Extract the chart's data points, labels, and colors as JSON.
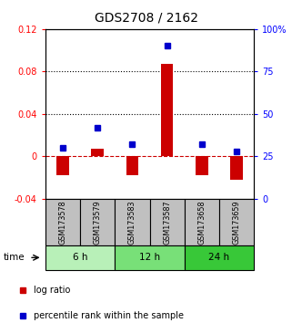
{
  "title": "GDS2708 / 2162",
  "samples": [
    "GSM173578",
    "GSM173579",
    "GSM173583",
    "GSM173587",
    "GSM173658",
    "GSM173659"
  ],
  "log_ratio": [
    -0.018,
    0.007,
    -0.018,
    0.087,
    -0.018,
    -0.022
  ],
  "percentile_rank": [
    30,
    42,
    32,
    90,
    32,
    28
  ],
  "ylim_left": [
    -0.04,
    0.12
  ],
  "ylim_right": [
    0,
    100
  ],
  "yticks_left": [
    -0.04,
    0,
    0.04,
    0.08,
    0.12
  ],
  "ytick_labels_left": [
    "-0.04",
    "0",
    "0.04",
    "0.08",
    "0.12"
  ],
  "yticks_right": [
    0,
    25,
    50,
    75,
    100
  ],
  "ytick_labels_right": [
    "0",
    "25",
    "50",
    "75",
    "100%"
  ],
  "hlines_dotted": [
    0.04,
    0.08
  ],
  "hline_dashed": 0,
  "time_groups": [
    {
      "label": "6 h",
      "samples": [
        0,
        1
      ],
      "color": "#b8f0b8"
    },
    {
      "label": "12 h",
      "samples": [
        2,
        3
      ],
      "color": "#78e078"
    },
    {
      "label": "24 h",
      "samples": [
        4,
        5
      ],
      "color": "#38c838"
    }
  ],
  "bar_color": "#cc0000",
  "dot_color": "#0000cc",
  "bar_width": 0.35,
  "legend_bar_label": "log ratio",
  "legend_dot_label": "percentile rank within the sample",
  "time_label": "time",
  "bg_sample_color": "#c0c0c0",
  "title_fontsize": 10,
  "axis_fontsize": 7.5,
  "tick_fontsize": 7,
  "sample_label_fontsize": 5.8
}
